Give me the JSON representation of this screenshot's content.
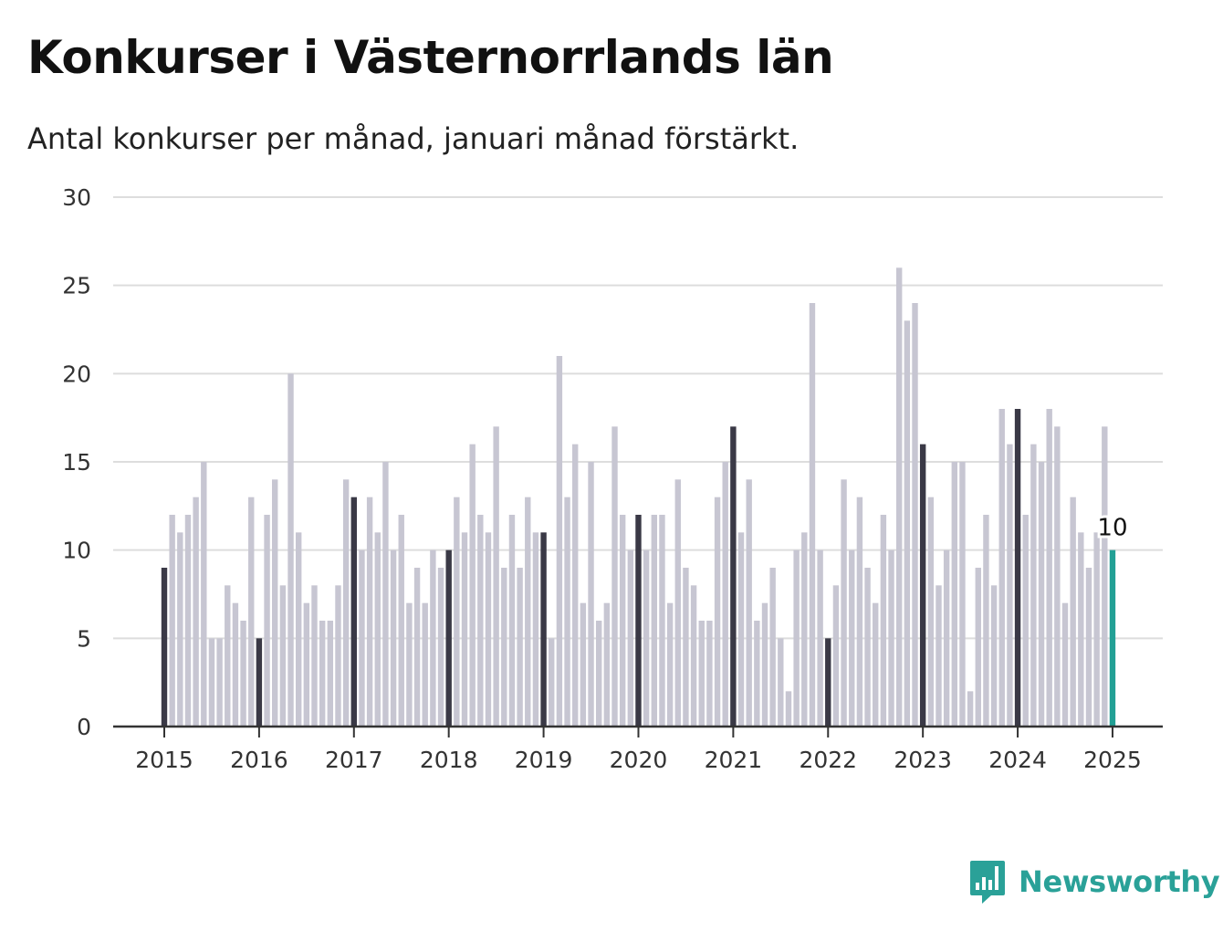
{
  "title": "Konkurser i Västernorrlands län",
  "subtitle": "Antal konkurser per månad, januari månad förstärkt.",
  "brand": {
    "name": "Newsworthy",
    "icon": "newsworthy-logo-icon",
    "color": "#2aa198"
  },
  "colors": {
    "bar": "#c7c6d2",
    "january": "#3a3946",
    "latest": "#22a095",
    "grid": "#dddddd",
    "axis": "#333333"
  },
  "chart_data": {
    "type": "bar",
    "title": "Konkurser i Västernorrlands län",
    "subtitle": "Antal konkurser per månad, januari månad förstärkt.",
    "xlabel": "",
    "ylabel": "",
    "ylim": [
      0,
      30
    ],
    "yticks": [
      0,
      5,
      10,
      15,
      20,
      25,
      30
    ],
    "xticks": [
      "2015",
      "2016",
      "2017",
      "2018",
      "2019",
      "2020",
      "2021",
      "2022",
      "2023",
      "2024",
      "2025"
    ],
    "start": "2015-01",
    "grid": true,
    "highlight": "january bars dark, latest bar teal",
    "latest_label": "10",
    "values": [
      9,
      12,
      11,
      12,
      13,
      15,
      5,
      5,
      8,
      7,
      6,
      13,
      5,
      12,
      14,
      8,
      20,
      11,
      7,
      8,
      6,
      6,
      8,
      14,
      13,
      10,
      13,
      11,
      15,
      10,
      12,
      7,
      9,
      7,
      10,
      9,
      10,
      13,
      11,
      16,
      12,
      11,
      17,
      9,
      12,
      9,
      13,
      11,
      11,
      5,
      21,
      13,
      16,
      7,
      15,
      6,
      7,
      17,
      12,
      10,
      12,
      10,
      12,
      12,
      7,
      14,
      9,
      8,
      6,
      6,
      13,
      15,
      17,
      11,
      14,
      6,
      7,
      9,
      5,
      2,
      10,
      11,
      24,
      10,
      5,
      8,
      14,
      10,
      13,
      9,
      7,
      12,
      10,
      26,
      23,
      24,
      16,
      13,
      8,
      10,
      15,
      15,
      2,
      9,
      12,
      8,
      18,
      16,
      18,
      12,
      16,
      15,
      18,
      17,
      7,
      13,
      11,
      9,
      11,
      17,
      10
    ]
  }
}
